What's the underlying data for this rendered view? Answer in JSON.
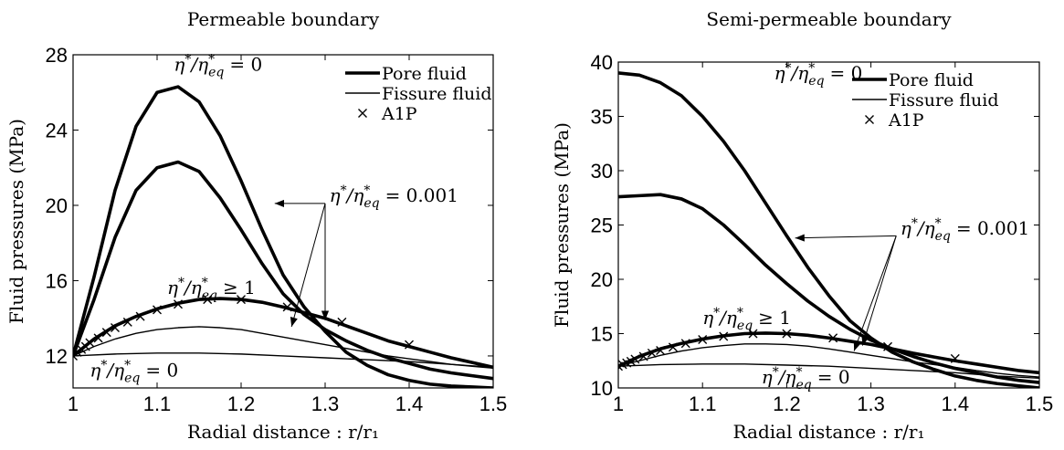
{
  "chart_data": [
    {
      "type": "line",
      "title": "Permeable boundary",
      "xlabel": "Radial distance : r/r₁",
      "ylabel": "Fluid pressures (MPa)",
      "xlim": [
        1,
        1.5
      ],
      "ylim": [
        10.3,
        28
      ],
      "xticks": [
        1,
        1.1,
        1.2,
        1.3,
        1.4,
        1.5
      ],
      "xtick_labels": [
        "1",
        "1.1",
        "1.2",
        "1.3",
        "1.4",
        "1.5"
      ],
      "yticks": [
        12,
        16,
        20,
        24,
        28
      ],
      "ytick_labels": [
        "12",
        "16",
        "20",
        "24",
        "28"
      ],
      "grid": false,
      "legend": {
        "position": "top-right",
        "entries": [
          {
            "label": "Pore fluid",
            "style": "thick"
          },
          {
            "label": "Fissure fluid",
            "style": "thin"
          },
          {
            "label": "A1P",
            "style": "marker-x"
          }
        ]
      },
      "annotations": [
        {
          "text": "η*/η*eq = 0",
          "num": "η",
          "den": "η",
          "sub": "eq",
          "rel": "= 0",
          "ax": 1.12,
          "ay": 27.15
        },
        {
          "text": "η*/η*eq = 0.001",
          "num": "η",
          "den": "η",
          "sub": "eq",
          "rel": "= 0.001",
          "ax": 1.305,
          "ay": 20.2
        },
        {
          "text": "η*/η*eq ≥ 1",
          "num": "η",
          "den": "η",
          "sub": "eq",
          "rel": "≥ 1",
          "ax": 1.112,
          "ay": 15.3
        },
        {
          "text": "η*/η*eq = 0",
          "num": "η",
          "den": "η",
          "sub": "eq",
          "rel": "= 0",
          "ax": 1.02,
          "ay": 10.9
        }
      ],
      "arrows": [
        {
          "label_at": [
            1.3,
            20.1
          ],
          "targets": [
            [
              1.24,
              20.1
            ],
            [
              1.3,
              13.9
            ],
            [
              1.26,
              13.55
            ]
          ]
        }
      ],
      "series": [
        {
          "kind": "pore",
          "eta": "0",
          "x": [
            1.0,
            1.025,
            1.05,
            1.075,
            1.1,
            1.125,
            1.15,
            1.175,
            1.2,
            1.225,
            1.25,
            1.275,
            1.3,
            1.325,
            1.35,
            1.375,
            1.4,
            1.425,
            1.45,
            1.475,
            1.5
          ],
          "y": [
            12.0,
            16.2,
            20.8,
            24.2,
            26.0,
            26.3,
            25.5,
            23.7,
            21.3,
            18.7,
            16.3,
            14.6,
            13.3,
            12.2,
            11.5,
            11.0,
            10.7,
            10.5,
            10.4,
            10.35,
            10.3
          ]
        },
        {
          "kind": "pore",
          "eta": "0.001",
          "x": [
            1.0,
            1.025,
            1.05,
            1.075,
            1.1,
            1.125,
            1.15,
            1.175,
            1.2,
            1.225,
            1.25,
            1.275,
            1.3,
            1.325,
            1.35,
            1.375,
            1.4,
            1.425,
            1.45,
            1.475,
            1.5
          ],
          "y": [
            12.0,
            15.0,
            18.3,
            20.8,
            22.0,
            22.3,
            21.8,
            20.4,
            18.7,
            16.9,
            15.3,
            14.2,
            13.4,
            12.8,
            12.3,
            11.9,
            11.6,
            11.3,
            11.1,
            10.95,
            10.8
          ]
        },
        {
          "kind": "pore",
          "eta": "≥1",
          "x": [
            1.0,
            1.025,
            1.05,
            1.075,
            1.1,
            1.125,
            1.15,
            1.175,
            1.2,
            1.225,
            1.25,
            1.275,
            1.3,
            1.325,
            1.35,
            1.375,
            1.4,
            1.425,
            1.45,
            1.475,
            1.5
          ],
          "y": [
            12.0,
            12.9,
            13.6,
            14.1,
            14.5,
            14.8,
            15.0,
            15.05,
            15.0,
            14.85,
            14.6,
            14.3,
            14.0,
            13.6,
            13.2,
            12.8,
            12.5,
            12.2,
            11.9,
            11.65,
            11.4
          ]
        },
        {
          "kind": "fissure",
          "eta": "0.001",
          "x": [
            1.0,
            1.025,
            1.05,
            1.075,
            1.1,
            1.125,
            1.15,
            1.175,
            1.2,
            1.225,
            1.25,
            1.275,
            1.3,
            1.325,
            1.35,
            1.375,
            1.4,
            1.425,
            1.45,
            1.475,
            1.5
          ],
          "y": [
            12.0,
            12.5,
            12.9,
            13.2,
            13.4,
            13.5,
            13.55,
            13.5,
            13.4,
            13.2,
            13.0,
            12.8,
            12.6,
            12.4,
            12.2,
            12.0,
            11.85,
            11.7,
            11.55,
            11.45,
            11.35
          ]
        },
        {
          "kind": "fissure",
          "eta": "0",
          "x": [
            1.0,
            1.05,
            1.1,
            1.15,
            1.2,
            1.25,
            1.3,
            1.35,
            1.4,
            1.45,
            1.5
          ],
          "y": [
            12.0,
            12.1,
            12.15,
            12.15,
            12.1,
            12.0,
            11.9,
            11.8,
            11.7,
            11.55,
            11.4
          ]
        },
        {
          "kind": "a1p",
          "label": "A1P",
          "x": [
            1.0,
            1.005,
            1.01,
            1.015,
            1.02,
            1.03,
            1.04,
            1.05,
            1.065,
            1.08,
            1.1,
            1.125,
            1.16,
            1.2,
            1.255,
            1.32,
            1.4
          ],
          "y": [
            12.0,
            12.2,
            12.35,
            12.5,
            12.7,
            12.95,
            13.25,
            13.5,
            13.8,
            14.1,
            14.45,
            14.75,
            15.0,
            15.0,
            14.6,
            13.8,
            12.6
          ]
        }
      ]
    },
    {
      "type": "line",
      "title": "Semi-permeable boundary",
      "xlabel": "Radial distance : r/r₁",
      "ylabel": "Fluid pressures (MPa)",
      "xlim": [
        1,
        1.5
      ],
      "ylim": [
        10,
        40
      ],
      "xticks": [
        1,
        1.1,
        1.2,
        1.3,
        1.4,
        1.5
      ],
      "xtick_labels": [
        "1",
        "1.1",
        "1.2",
        "1.3",
        "1.4",
        "1.5"
      ],
      "yticks": [
        10,
        15,
        20,
        25,
        30,
        35,
        40
      ],
      "ytick_labels": [
        "10",
        "15",
        "20",
        "25",
        "30",
        "35",
        "40"
      ],
      "grid": false,
      "legend": {
        "position": "top-right",
        "entries": [
          {
            "label": "Pore fluid",
            "style": "thick"
          },
          {
            "label": "Fissure fluid",
            "style": "thin"
          },
          {
            "label": "A1P",
            "style": "marker-x"
          }
        ]
      },
      "annotations": [
        {
          "text": "η*/η*eq = 0",
          "num": "η",
          "den": "η",
          "sub": "eq",
          "rel": "= 0",
          "ax": 1.185,
          "ay": 38.4
        },
        {
          "text": "η*/η*eq = 0.001",
          "num": "η",
          "den": "η",
          "sub": "eq",
          "rel": "= 0.001",
          "ax": 1.335,
          "ay": 24.1
        },
        {
          "text": "η*/η*eq ≥ 1",
          "num": "η",
          "den": "η",
          "sub": "eq",
          "rel": "≥ 1",
          "ax": 1.1,
          "ay": 15.9
        },
        {
          "text": "η*/η*eq = 0",
          "num": "η",
          "den": "η",
          "sub": "eq",
          "rel": "= 0",
          "ax": 1.17,
          "ay": 10.4
        }
      ],
      "arrows": [
        {
          "label_at": [
            1.33,
            24.0
          ],
          "targets": [
            [
              1.21,
              23.8
            ],
            [
              1.29,
              13.9
            ],
            [
              1.28,
              13.4
            ]
          ]
        }
      ],
      "series": [
        {
          "kind": "pore",
          "eta": "0",
          "x": [
            1.0,
            1.025,
            1.05,
            1.075,
            1.1,
            1.125,
            1.15,
            1.175,
            1.2,
            1.225,
            1.25,
            1.275,
            1.3,
            1.325,
            1.35,
            1.375,
            1.4,
            1.425,
            1.45,
            1.475,
            1.5
          ],
          "y": [
            39.0,
            38.8,
            38.1,
            36.9,
            35.0,
            32.7,
            30.0,
            27.0,
            24.0,
            21.1,
            18.5,
            16.2,
            14.6,
            13.3,
            12.4,
            11.7,
            11.1,
            10.7,
            10.4,
            10.2,
            10.0
          ]
        },
        {
          "kind": "pore",
          "eta": "0.001",
          "x": [
            1.0,
            1.025,
            1.05,
            1.075,
            1.1,
            1.125,
            1.15,
            1.175,
            1.2,
            1.225,
            1.25,
            1.275,
            1.3,
            1.325,
            1.35,
            1.375,
            1.4,
            1.425,
            1.45,
            1.475,
            1.5
          ],
          "y": [
            27.6,
            27.7,
            27.8,
            27.4,
            26.5,
            25.0,
            23.2,
            21.3,
            19.6,
            18.0,
            16.6,
            15.4,
            14.4,
            13.6,
            12.9,
            12.3,
            11.8,
            11.4,
            11.0,
            10.7,
            10.5
          ]
        },
        {
          "kind": "pore",
          "eta": "≥1",
          "x": [
            1.0,
            1.025,
            1.05,
            1.075,
            1.1,
            1.125,
            1.15,
            1.175,
            1.2,
            1.225,
            1.25,
            1.275,
            1.3,
            1.325,
            1.35,
            1.375,
            1.4,
            1.425,
            1.45,
            1.475,
            1.5
          ],
          "y": [
            12.0,
            12.9,
            13.6,
            14.1,
            14.5,
            14.8,
            15.0,
            15.05,
            15.0,
            14.85,
            14.6,
            14.3,
            14.0,
            13.6,
            13.2,
            12.85,
            12.5,
            12.2,
            11.9,
            11.6,
            11.4
          ]
        },
        {
          "kind": "fissure",
          "eta": "0.001",
          "x": [
            1.0,
            1.025,
            1.05,
            1.075,
            1.1,
            1.125,
            1.15,
            1.175,
            1.2,
            1.225,
            1.25,
            1.275,
            1.3,
            1.325,
            1.35,
            1.375,
            1.4,
            1.425,
            1.45,
            1.475,
            1.5
          ],
          "y": [
            12.0,
            12.5,
            13.0,
            13.4,
            13.7,
            13.9,
            14.05,
            14.05,
            14.0,
            13.85,
            13.6,
            13.3,
            13.0,
            12.7,
            12.4,
            12.15,
            11.9,
            11.6,
            11.35,
            11.15,
            11.0
          ]
        },
        {
          "kind": "fissure",
          "eta": "0",
          "x": [
            1.0,
            1.05,
            1.1,
            1.15,
            1.2,
            1.25,
            1.3,
            1.35,
            1.4,
            1.45,
            1.5
          ],
          "y": [
            12.0,
            12.15,
            12.2,
            12.2,
            12.1,
            12.0,
            11.8,
            11.6,
            11.4,
            11.1,
            10.9
          ]
        },
        {
          "kind": "a1p",
          "label": "A1P",
          "x": [
            1.0,
            1.005,
            1.01,
            1.015,
            1.02,
            1.03,
            1.04,
            1.05,
            1.065,
            1.08,
            1.1,
            1.125,
            1.16,
            1.2,
            1.255,
            1.32,
            1.4
          ],
          "y": [
            12.0,
            12.15,
            12.3,
            12.45,
            12.65,
            12.9,
            13.2,
            13.45,
            13.75,
            14.1,
            14.45,
            14.75,
            15.0,
            15.0,
            14.6,
            13.8,
            12.7
          ]
        }
      ]
    }
  ]
}
